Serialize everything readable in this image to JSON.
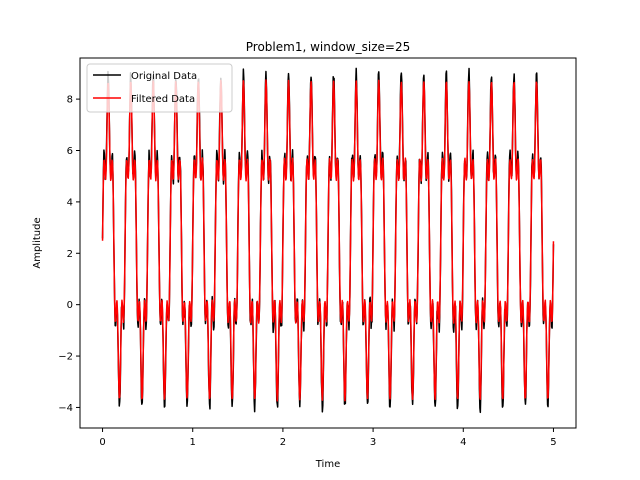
{
  "chart_data": {
    "type": "line",
    "title": "Problem1, window_size=25",
    "xlabel": "Time",
    "ylabel": "Amplitude",
    "xlim": [
      -0.25,
      5.25
    ],
    "ylim": [
      -4.8,
      9.6
    ],
    "xticks": [
      0,
      1,
      2,
      3,
      4,
      5
    ],
    "xtick_labels": [
      "0",
      "1",
      "2",
      "3",
      "4",
      "5"
    ],
    "yticks": [
      -4,
      -2,
      0,
      2,
      4,
      6,
      8
    ],
    "ytick_labels": [
      "−4",
      "−2",
      "0",
      "2",
      "4",
      "6",
      "8"
    ],
    "grid": false,
    "legend_position": "upper-left",
    "series": [
      {
        "name": "Original Data",
        "color": "#000000",
        "signal": {
          "x_start": 0,
          "x_end": 5,
          "samples": 1000,
          "offset": 2.5,
          "components": [
            {
              "amplitude": 5.0,
              "frequency_hz": 4.0
            },
            {
              "amplitude": 1.5,
              "frequency_hz": 20.0
            }
          ],
          "noise_amplitude": 0.25
        }
      },
      {
        "name": "Filtered Data",
        "color": "#ff0000",
        "signal": {
          "x_start": 0,
          "x_end": 5,
          "samples": 1000,
          "offset": 2.5,
          "components": [
            {
              "amplitude": 4.8,
              "frequency_hz": 4.0
            },
            {
              "amplitude": 1.4,
              "frequency_hz": 20.0
            }
          ],
          "noise_amplitude": 0.05,
          "window_size": 25
        }
      }
    ]
  }
}
